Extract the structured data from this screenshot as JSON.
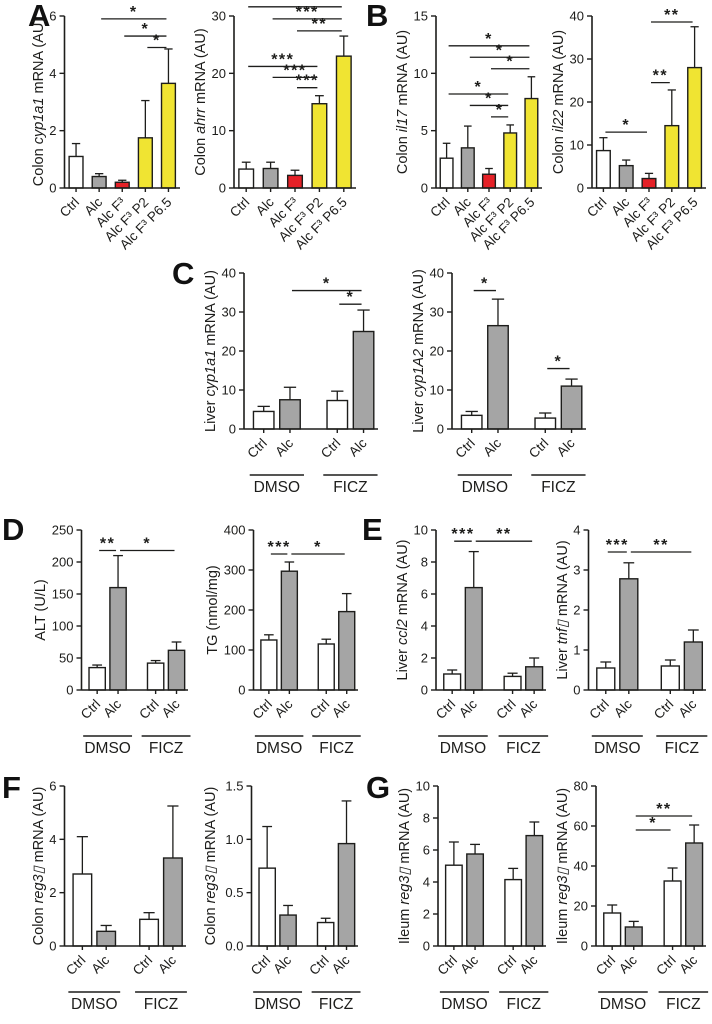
{
  "figure": {
    "panels": [
      {
        "letter": "A"
      },
      {
        "letter": "B"
      },
      {
        "letter": "C"
      },
      {
        "letter": "D"
      },
      {
        "letter": "E"
      },
      {
        "letter": "F"
      },
      {
        "letter": "G"
      }
    ]
  },
  "palette": {
    "ink": "#1d1d1b",
    "white": "#ffffff",
    "gray": "#a5a5a5",
    "red": "#e52127",
    "yellow": "#f0e432"
  },
  "chart_data": [
    {
      "name": "colon-cyp1a1",
      "panel": "A",
      "type": "bar",
      "ylabel_parts": [
        {
          "text": "Colon ",
          "italic": false
        },
        {
          "text": "cyp1a1",
          "italic": true
        },
        {
          "text": " mRNA (AU)",
          "italic": false
        }
      ],
      "ylim": [
        0,
        6
      ],
      "yticks": [
        0,
        2,
        4,
        6
      ],
      "ytick_labels": [
        "0",
        "2",
        "4",
        "6"
      ],
      "categories": [
        "Ctrl",
        "Alc",
        "Alc F³",
        "Alc F³ P2",
        "Alc F³ P6.5"
      ],
      "values": [
        1.1,
        0.4,
        0.2,
        1.75,
        3.65
      ],
      "errors": [
        0.45,
        0.1,
        0.07,
        1.3,
        1.2
      ],
      "colors": [
        "white",
        "gray",
        "red",
        "yellow",
        "yellow"
      ],
      "grouped": false,
      "groups": [],
      "significance": [
        {
          "from": 1,
          "to": 4,
          "y": 5.9,
          "label": "*"
        },
        {
          "from": 2,
          "to": 4,
          "y": 5.3,
          "label": "*"
        },
        {
          "from": 3,
          "to": 4,
          "y": 4.9,
          "label": "*"
        }
      ]
    },
    {
      "name": "colon-ahrr",
      "panel": "A",
      "type": "bar",
      "ylabel_parts": [
        {
          "text": "Colon ",
          "italic": false
        },
        {
          "text": "ahrr",
          "italic": true
        },
        {
          "text": " mRNA (AU)",
          "italic": false
        }
      ],
      "ylim": [
        0,
        30
      ],
      "yticks": [
        0,
        10,
        20,
        30
      ],
      "ytick_labels": [
        "0",
        "10",
        "20",
        "30"
      ],
      "categories": [
        "Ctrl",
        "Alc",
        "Alc F³",
        "Alc F³ P2",
        "Alc F³ P6.5"
      ],
      "values": [
        3.3,
        3.4,
        2.2,
        14.7,
        23.0
      ],
      "errors": [
        1.2,
        1.1,
        0.9,
        1.4,
        3.5
      ],
      "colors": [
        "white",
        "gray",
        "red",
        "yellow",
        "yellow"
      ],
      "grouped": false,
      "groups": [],
      "significance": [
        {
          "from": 0,
          "to": 4,
          "y": 31.6,
          "label": "***"
        },
        {
          "from": 1,
          "to": 4,
          "y": 29.5,
          "label": "***"
        },
        {
          "from": 2,
          "to": 4,
          "y": 27.4,
          "label": "**"
        },
        {
          "from": 0,
          "to": 3,
          "y": 21.2,
          "label": "***"
        },
        {
          "from": 1,
          "to": 3,
          "y": 19.3,
          "label": "***"
        },
        {
          "from": 2,
          "to": 3,
          "y": 17.5,
          "label": "***"
        }
      ]
    },
    {
      "name": "colon-il17",
      "panel": "B",
      "type": "bar",
      "ylabel_parts": [
        {
          "text": "Colon ",
          "italic": false
        },
        {
          "text": "il17",
          "italic": true
        },
        {
          "text": " mRNA (AU)",
          "italic": false
        }
      ],
      "ylim": [
        0,
        15
      ],
      "yticks": [
        0,
        5,
        10,
        15
      ],
      "ytick_labels": [
        "0",
        "5",
        "10",
        "15"
      ],
      "categories": [
        "Ctrl",
        "Alc",
        "Alc F³",
        "Alc F³ P2",
        "Alc F³ P6.5"
      ],
      "values": [
        2.6,
        3.5,
        1.2,
        4.8,
        7.8
      ],
      "errors": [
        1.3,
        1.9,
        0.5,
        0.7,
        1.9
      ],
      "colors": [
        "white",
        "gray",
        "red",
        "yellow",
        "yellow"
      ],
      "grouped": false,
      "groups": [],
      "significance": [
        {
          "from": 0,
          "to": 4,
          "y": 12.4,
          "label": "*"
        },
        {
          "from": 1,
          "to": 4,
          "y": 11.4,
          "label": "*"
        },
        {
          "from": 2,
          "to": 4,
          "y": 10.4,
          "label": "*"
        },
        {
          "from": 0,
          "to": 3,
          "y": 8.2,
          "label": "*"
        },
        {
          "from": 1,
          "to": 3,
          "y": 7.2,
          "label": "*"
        },
        {
          "from": 2,
          "to": 3,
          "y": 6.2,
          "label": "*"
        }
      ]
    },
    {
      "name": "colon-il22",
      "panel": "B",
      "type": "bar",
      "ylabel_parts": [
        {
          "text": "Colon ",
          "italic": false
        },
        {
          "text": "il22",
          "italic": true
        },
        {
          "text": " mRNA (AU)",
          "italic": false
        }
      ],
      "ylim": [
        0,
        40
      ],
      "yticks": [
        0,
        10,
        20,
        30,
        40
      ],
      "ytick_labels": [
        "0",
        "10",
        "20",
        "30",
        "40"
      ],
      "categories": [
        "Ctrl",
        "Alc",
        "Alc F³",
        "Alc F³ P2",
        "Alc F³ P6.5"
      ],
      "values": [
        8.7,
        5.2,
        2.2,
        14.5,
        28.0
      ],
      "errors": [
        3.0,
        1.3,
        1.2,
        8.3,
        9.5
      ],
      "colors": [
        "white",
        "gray",
        "red",
        "yellow",
        "yellow"
      ],
      "grouped": false,
      "groups": [],
      "significance": [
        {
          "from": 0,
          "to": 2,
          "y": 13.0,
          "label": "*"
        },
        {
          "from": 2,
          "to": 3,
          "y": 24.5,
          "label": "**"
        },
        {
          "from": 2,
          "to": 4,
          "y": 38.6,
          "label": "**"
        }
      ]
    },
    {
      "name": "liver-cyp1a1",
      "panel": "C",
      "type": "bar",
      "ylabel_parts": [
        {
          "text": "Liver ",
          "italic": false
        },
        {
          "text": "cyp1a1",
          "italic": true
        },
        {
          "text": " mRNA (AU)",
          "italic": false
        }
      ],
      "ylim": [
        0,
        40
      ],
      "yticks": [
        0,
        10,
        20,
        30,
        40
      ],
      "ytick_labels": [
        "0",
        "10",
        "20",
        "30",
        "40"
      ],
      "categories": [
        "Ctrl",
        "Alc",
        "Ctrl",
        "Alc"
      ],
      "values": [
        4.5,
        7.5,
        7.3,
        25.0
      ],
      "errors": [
        1.3,
        3.2,
        2.4,
        5.5
      ],
      "colors": [
        "white",
        "gray",
        "white",
        "gray"
      ],
      "grouped": true,
      "groups": [
        {
          "label": "DMSO",
          "bars": [
            0,
            1
          ]
        },
        {
          "label": "FICZ",
          "bars": [
            2,
            3
          ]
        }
      ],
      "significance": [
        {
          "from": 1,
          "to": 3,
          "y": 35.5,
          "label": "*"
        },
        {
          "from": 2,
          "to": 3,
          "y": 32.0,
          "label": "*"
        }
      ]
    },
    {
      "name": "liver-cyp1A2",
      "panel": "C",
      "type": "bar",
      "ylabel_parts": [
        {
          "text": "Liver ",
          "italic": false
        },
        {
          "text": "cyp1A2",
          "italic": true
        },
        {
          "text": " mRNA (AU)",
          "italic": false
        }
      ],
      "ylim": [
        0,
        40
      ],
      "yticks": [
        0,
        10,
        20,
        30,
        40
      ],
      "ytick_labels": [
        "0",
        "10",
        "20",
        "30",
        "40"
      ],
      "categories": [
        "Ctrl",
        "Alc",
        "Ctrl",
        "Alc"
      ],
      "values": [
        3.5,
        26.5,
        2.8,
        11.0
      ],
      "errors": [
        1.0,
        6.8,
        1.3,
        1.8
      ],
      "colors": [
        "white",
        "gray",
        "white",
        "gray"
      ],
      "grouped": true,
      "groups": [
        {
          "label": "DMSO",
          "bars": [
            0,
            1
          ]
        },
        {
          "label": "FICZ",
          "bars": [
            2,
            3
          ]
        }
      ],
      "significance": [
        {
          "from": 0,
          "to": 1,
          "y": 35.5,
          "label": "*"
        },
        {
          "from": 2,
          "to": 3,
          "y": 15.5,
          "label": "*"
        }
      ]
    },
    {
      "name": "alt",
      "panel": "D",
      "type": "bar",
      "ylabel_parts": [
        {
          "text": "ALT (U/L)",
          "italic": false
        }
      ],
      "ylim": [
        0,
        250
      ],
      "yticks": [
        0,
        50,
        100,
        150,
        200,
        250
      ],
      "ytick_labels": [
        "0",
        "50",
        "100",
        "150",
        "200",
        "250"
      ],
      "categories": [
        "Ctrl",
        "Alc",
        "Ctrl",
        "Alc"
      ],
      "values": [
        35,
        160,
        42,
        62
      ],
      "errors": [
        4,
        50,
        4,
        13
      ],
      "colors": [
        "white",
        "gray",
        "white",
        "gray"
      ],
      "grouped": true,
      "groups": [
        {
          "label": "DMSO",
          "bars": [
            0,
            1
          ]
        },
        {
          "label": "FICZ",
          "bars": [
            2,
            3
          ]
        }
      ],
      "significance": [
        {
          "from": 0,
          "to": 1,
          "y": 218,
          "label": "**"
        },
        {
          "from": 1,
          "to": 3,
          "y": 218,
          "label": "*"
        }
      ]
    },
    {
      "name": "tg",
      "panel": "D",
      "type": "bar",
      "ylabel_parts": [
        {
          "text": "TG (nmol/mg)",
          "italic": false
        }
      ],
      "ylim": [
        0,
        400
      ],
      "yticks": [
        0,
        100,
        200,
        300,
        400
      ],
      "ytick_labels": [
        "0",
        "100",
        "200",
        "300",
        "400"
      ],
      "categories": [
        "Ctrl",
        "Alc",
        "Ctrl",
        "Alc"
      ],
      "values": [
        125,
        297,
        115,
        196
      ],
      "errors": [
        13,
        23,
        12,
        45
      ],
      "colors": [
        "white",
        "gray",
        "white",
        "gray"
      ],
      "grouped": true,
      "groups": [
        {
          "label": "DMSO",
          "bars": [
            0,
            1
          ]
        },
        {
          "label": "FICZ",
          "bars": [
            2,
            3
          ]
        }
      ],
      "significance": [
        {
          "from": 0,
          "to": 1,
          "y": 340,
          "label": "***"
        },
        {
          "from": 1,
          "to": 3,
          "y": 340,
          "label": "*"
        }
      ]
    },
    {
      "name": "liver-ccl2",
      "panel": "E",
      "type": "bar",
      "ylabel_parts": [
        {
          "text": "Liver ",
          "italic": false
        },
        {
          "text": "ccl2",
          "italic": true
        },
        {
          "text": " mRNA (AU)",
          "italic": false
        }
      ],
      "ylim": [
        0,
        10
      ],
      "yticks": [
        0,
        2,
        4,
        6,
        8,
        10
      ],
      "ytick_labels": [
        "0",
        "2",
        "4",
        "6",
        "8",
        "10"
      ],
      "categories": [
        "Ctrl",
        "Alc",
        "Ctrl",
        "Alc"
      ],
      "values": [
        1.0,
        6.4,
        0.85,
        1.45
      ],
      "errors": [
        0.25,
        2.25,
        0.2,
        0.55
      ],
      "colors": [
        "white",
        "gray",
        "white",
        "gray"
      ],
      "grouped": true,
      "groups": [
        {
          "label": "DMSO",
          "bars": [
            0,
            1
          ]
        },
        {
          "label": "FICZ",
          "bars": [
            2,
            3
          ]
        }
      ],
      "significance": [
        {
          "from": 0,
          "to": 1,
          "y": 9.3,
          "label": "***"
        },
        {
          "from": 1,
          "to": 3,
          "y": 9.3,
          "label": "**"
        }
      ]
    },
    {
      "name": "liver-tnf",
      "panel": "E",
      "type": "bar",
      "ylabel_parts": [
        {
          "text": "Liver ",
          "italic": false
        },
        {
          "text": "tnf▯",
          "italic": true
        },
        {
          "text": " mRNA (AU)",
          "italic": false
        }
      ],
      "ylim": [
        0,
        4
      ],
      "yticks": [
        0,
        1,
        2,
        3,
        4
      ],
      "ytick_labels": [
        "0",
        "1",
        "2",
        "3",
        "4"
      ],
      "categories": [
        "Ctrl",
        "Alc",
        "Ctrl",
        "Alc"
      ],
      "values": [
        0.55,
        2.78,
        0.6,
        1.2
      ],
      "errors": [
        0.15,
        0.4,
        0.15,
        0.3
      ],
      "colors": [
        "white",
        "gray",
        "white",
        "gray"
      ],
      "grouped": true,
      "groups": [
        {
          "label": "DMSO",
          "bars": [
            0,
            1
          ]
        },
        {
          "label": "FICZ",
          "bars": [
            2,
            3
          ]
        }
      ],
      "significance": [
        {
          "from": 0,
          "to": 1,
          "y": 3.45,
          "label": "***"
        },
        {
          "from": 1,
          "to": 3,
          "y": 3.45,
          "label": "**"
        }
      ]
    },
    {
      "name": "colon-reg3b",
      "panel": "F",
      "type": "bar",
      "ylabel_parts": [
        {
          "text": "Colon ",
          "italic": false
        },
        {
          "text": "reg3▯",
          "italic": true
        },
        {
          "text": " mRNA (AU)",
          "italic": false
        }
      ],
      "ylim": [
        0,
        6
      ],
      "yticks": [
        0,
        2,
        4,
        6
      ],
      "ytick_labels": [
        "0",
        "2",
        "4",
        "6"
      ],
      "categories": [
        "Ctrl",
        "Alc",
        "Ctrl",
        "Alc"
      ],
      "values": [
        2.7,
        0.55,
        1.0,
        3.3
      ],
      "errors": [
        1.4,
        0.22,
        0.25,
        1.95
      ],
      "colors": [
        "white",
        "gray",
        "white",
        "gray"
      ],
      "grouped": true,
      "groups": [
        {
          "label": "DMSO",
          "bars": [
            0,
            1
          ]
        },
        {
          "label": "FICZ",
          "bars": [
            2,
            3
          ]
        }
      ],
      "significance": []
    },
    {
      "name": "colon-reg3g",
      "panel": "F",
      "type": "bar",
      "ylabel_parts": [
        {
          "text": "Colon ",
          "italic": false
        },
        {
          "text": "reg3▯",
          "italic": true
        },
        {
          "text": " mRNA (AU)",
          "italic": false
        }
      ],
      "ylim": [
        0,
        1.5
      ],
      "yticks": [
        0,
        0.5,
        1.0,
        1.5
      ],
      "ytick_labels": [
        "0.0",
        "0.5",
        "1.0",
        "1.5"
      ],
      "categories": [
        "Ctrl",
        "Alc",
        "Ctrl",
        "Alc"
      ],
      "values": [
        0.73,
        0.29,
        0.22,
        0.96
      ],
      "errors": [
        0.39,
        0.09,
        0.04,
        0.4
      ],
      "colors": [
        "white",
        "gray",
        "white",
        "gray"
      ],
      "grouped": true,
      "groups": [
        {
          "label": "DMSO",
          "bars": [
            0,
            1
          ]
        },
        {
          "label": "FICZ",
          "bars": [
            2,
            3
          ]
        }
      ],
      "significance": []
    },
    {
      "name": "ileum-reg3b",
      "panel": "G",
      "type": "bar",
      "ylabel_parts": [
        {
          "text": "Ileum ",
          "italic": false
        },
        {
          "text": "reg3▯",
          "italic": true
        },
        {
          "text": " mRNA (AU)",
          "italic": false
        }
      ],
      "ylim": [
        0,
        10
      ],
      "yticks": [
        0,
        2,
        4,
        6,
        8,
        10
      ],
      "ytick_labels": [
        "0",
        "2",
        "4",
        "6",
        "8",
        "10"
      ],
      "categories": [
        "Ctrl",
        "Alc",
        "Ctrl",
        "Alc"
      ],
      "values": [
        5.05,
        5.75,
        4.15,
        6.9
      ],
      "errors": [
        1.45,
        0.6,
        0.7,
        0.85
      ],
      "colors": [
        "white",
        "gray",
        "white",
        "gray"
      ],
      "grouped": true,
      "groups": [
        {
          "label": "DMSO",
          "bars": [
            0,
            1
          ]
        },
        {
          "label": "FICZ",
          "bars": [
            2,
            3
          ]
        }
      ],
      "significance": []
    },
    {
      "name": "ileum-reg3g",
      "panel": "G",
      "type": "bar",
      "ylabel_parts": [
        {
          "text": "Ileum ",
          "italic": false
        },
        {
          "text": "reg3▯",
          "italic": true
        },
        {
          "text": " mRNA (AU)",
          "italic": false
        }
      ],
      "ylim": [
        0,
        80
      ],
      "yticks": [
        0,
        20,
        40,
        60,
        80
      ],
      "ytick_labels": [
        "0",
        "20",
        "40",
        "60",
        "80"
      ],
      "categories": [
        "Ctrl",
        "Alc",
        "Ctrl",
        "Alc"
      ],
      "values": [
        16.5,
        9.5,
        32.5,
        51.5
      ],
      "errors": [
        4.0,
        2.8,
        6.5,
        9.0
      ],
      "colors": [
        "white",
        "gray",
        "white",
        "gray"
      ],
      "grouped": true,
      "groups": [
        {
          "label": "DMSO",
          "bars": [
            0,
            1
          ]
        },
        {
          "label": "FICZ",
          "bars": [
            2,
            3
          ]
        }
      ],
      "significance": [
        {
          "from": 1,
          "to": 2,
          "y": 58,
          "label": "*"
        },
        {
          "from": 1,
          "to": 3,
          "y": 65,
          "label": "**"
        }
      ]
    }
  ]
}
